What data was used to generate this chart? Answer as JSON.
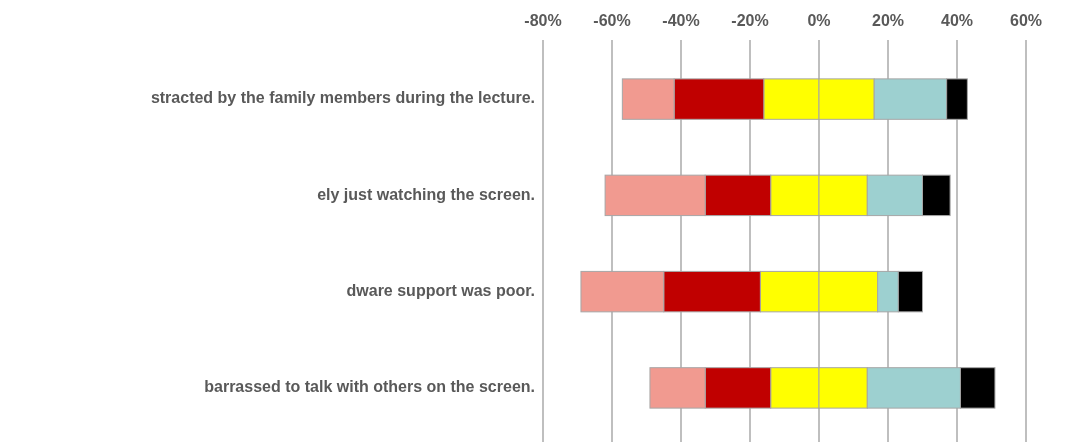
{
  "chart_data": {
    "type": "bar",
    "orientation": "horizontal",
    "stacked": true,
    "categories": [
      "stracted by the family members during the lecture.",
      "ely just watching the screen.",
      "dware support was poor.",
      "barrassed to talk with others on the screen."
    ],
    "series": [
      {
        "color": "#ffff00",
        "values": [
          -16,
          -14,
          -17,
          -14
        ]
      },
      {
        "color": "#c00000",
        "values": [
          -26,
          -19,
          -28,
          -19
        ]
      },
      {
        "color": "#f19a90",
        "values": [
          -15,
          -29,
          -24,
          -16
        ]
      },
      {
        "color": "#ffff00",
        "values": [
          16,
          14,
          17,
          14
        ]
      },
      {
        "color": "#9dd0d0",
        "values": [
          21,
          16,
          6,
          27
        ]
      },
      {
        "color": "#000000",
        "values": [
          6,
          8,
          7,
          10
        ]
      }
    ],
    "xlim": [
      -80,
      60
    ],
    "xticks": [
      {
        "value": -80,
        "label": "-80%"
      },
      {
        "value": -60,
        "label": "-60%"
      },
      {
        "value": -40,
        "label": "-40%"
      },
      {
        "value": -20,
        "label": "-20%"
      },
      {
        "value": 0,
        "label": "0%"
      },
      {
        "value": 20,
        "label": "20%"
      },
      {
        "value": 40,
        "label": "40%"
      },
      {
        "value": 60,
        "label": "60%"
      }
    ],
    "grid": "x"
  }
}
